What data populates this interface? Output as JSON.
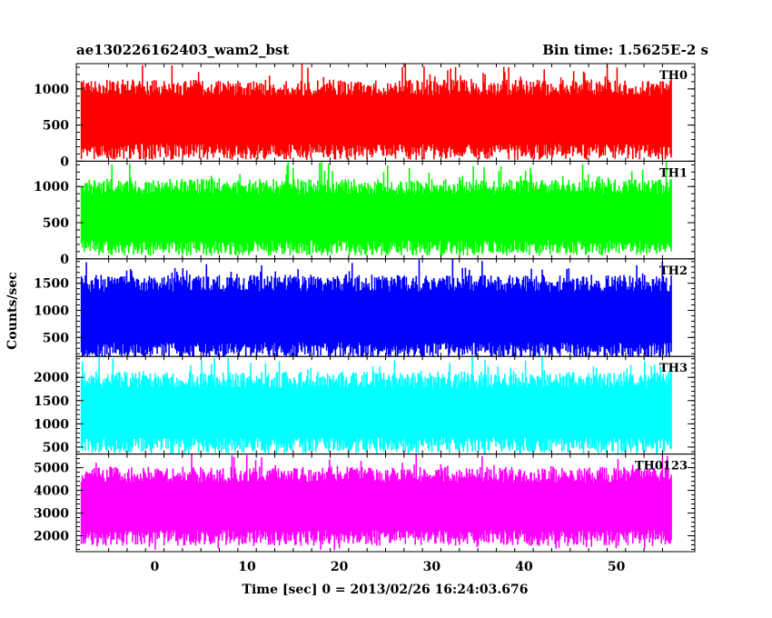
{
  "chart_data": {
    "type": "line",
    "title_left": "ae130226162403_wam2_bst",
    "title_right": "Bin time: 1.5625E-2 s",
    "xlabel": "Time [sec] 0 = 2013/02/26 16:24:03.676",
    "ylabel": "Counts/sec",
    "xlim": [
      -8.5,
      58.5
    ],
    "data_x_range": [
      -8.0,
      56.0
    ],
    "x_ticks": [
      0,
      10,
      20,
      30,
      40,
      50
    ],
    "x_tick_labels": [
      "0",
      "10",
      "20",
      "30",
      "40",
      "50"
    ],
    "grid": false,
    "panels": [
      {
        "name": "TH0",
        "color": "#ff0000",
        "ylim": [
          0,
          1350
        ],
        "y_ticks": [
          0,
          500,
          1000
        ],
        "y_tick_labels": [
          "0",
          "500",
          "1000"
        ],
        "typical_range": [
          130,
          1020
        ],
        "min": 20,
        "max": 1350
      },
      {
        "name": "TH1",
        "color": "#00ff00",
        "ylim": [
          0,
          1350
        ],
        "y_ticks": [
          0,
          500,
          1000
        ],
        "y_tick_labels": [
          "0",
          "500",
          "1000"
        ],
        "typical_range": [
          150,
          1000
        ],
        "min": 40,
        "max": 1350
      },
      {
        "name": "TH2",
        "color": "#0000ff",
        "ylim": [
          150,
          1950
        ],
        "y_ticks": [
          500,
          1000,
          1500
        ],
        "y_tick_labels": [
          "500",
          "1000",
          "1500"
        ],
        "typical_range": [
          250,
          1500
        ],
        "min": 170,
        "max": 1950
      },
      {
        "name": "TH3",
        "color": "#00ffff",
        "ylim": [
          350,
          2450
        ],
        "y_ticks": [
          500,
          1000,
          1500,
          2000
        ],
        "y_tick_labels": [
          "500",
          "1000",
          "1500",
          "2000"
        ],
        "typical_range": [
          530,
          1950
        ],
        "min": 380,
        "max": 2450
      },
      {
        "name": "TH0123",
        "color": "#ff00ff",
        "ylim": [
          1300,
          5600
        ],
        "y_ticks": [
          2000,
          3000,
          4000,
          5000
        ],
        "y_tick_labels": [
          "2000",
          "3000",
          "4000",
          "5000"
        ],
        "typical_range": [
          1900,
          4700
        ],
        "min": 1350,
        "max": 5600
      }
    ]
  }
}
